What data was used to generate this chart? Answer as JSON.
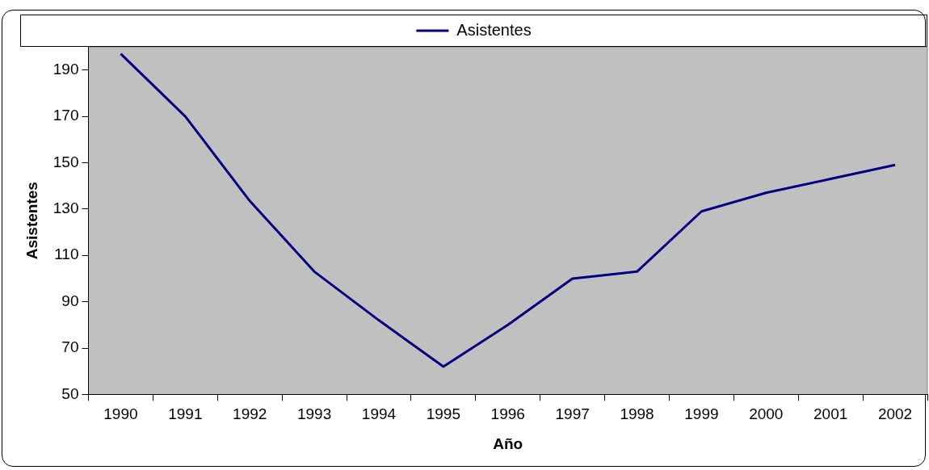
{
  "chart_data": {
    "type": "line",
    "xlabel": "Año",
    "ylabel": "Asistentes",
    "categories": [
      "1990",
      "1991",
      "1992",
      "1993",
      "1994",
      "1995",
      "1996",
      "1997",
      "1998",
      "1999",
      "2000",
      "2001",
      "2002"
    ],
    "series": [
      {
        "name": "Asistentes",
        "color": "#000080",
        "values": [
          197,
          170,
          133.5,
          103,
          82,
          62,
          80,
          100,
          103,
          129,
          137,
          143,
          149
        ]
      }
    ],
    "ylim": [
      50,
      200
    ],
    "yticks": [
      50,
      70,
      90,
      110,
      130,
      150,
      170,
      190
    ],
    "grid": false,
    "legend": "top",
    "marker": "none",
    "line_style": "solid"
  }
}
